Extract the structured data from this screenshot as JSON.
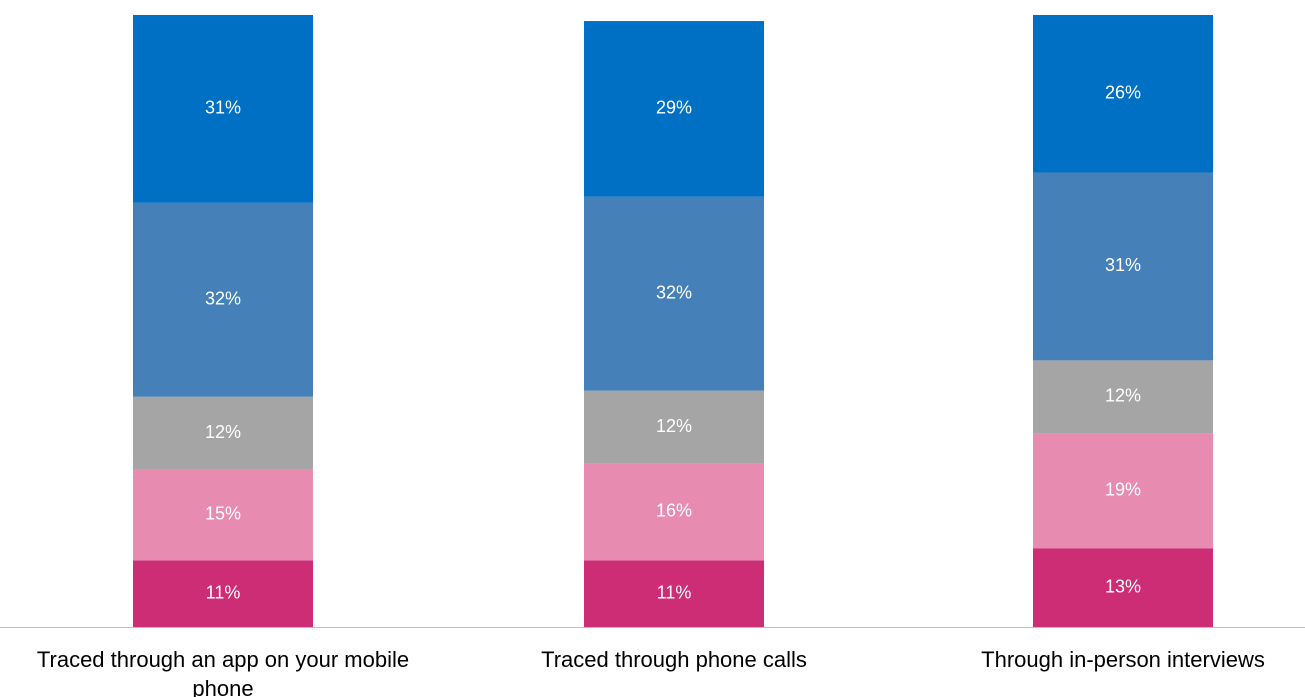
{
  "chart_data": {
    "type": "stacked_bar",
    "categories": [
      "Traced through an app on your mobile phone",
      "Traced through phone calls",
      "Through in-person interviews"
    ],
    "series": [
      {
        "color": "#cc2d74",
        "values": [
          11,
          11,
          13
        ],
        "value_labels": [
          "11%",
          "11%",
          "13%"
        ]
      },
      {
        "color": "#e88bb0",
        "values": [
          15,
          16,
          19
        ],
        "value_labels": [
          "15%",
          "16%",
          "19%"
        ]
      },
      {
        "color": "#a5a5a5",
        "values": [
          12,
          12,
          12
        ],
        "value_labels": [
          "12%",
          "12%",
          "12%"
        ]
      },
      {
        "color": "#4581b8",
        "values": [
          32,
          32,
          31
        ],
        "value_labels": [
          "32%",
          "32%",
          "31%"
        ]
      },
      {
        "color": "#0070c4",
        "values": [
          31,
          29,
          26
        ],
        "value_labels": [
          "31%",
          "29%",
          "26%"
        ]
      }
    ]
  }
}
